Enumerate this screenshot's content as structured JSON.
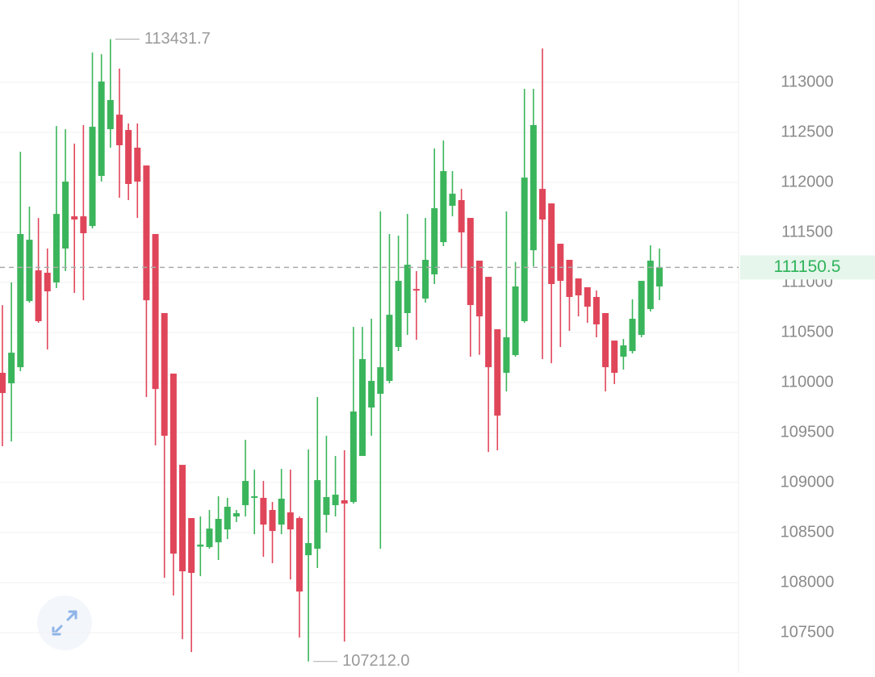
{
  "chart_data": {
    "type": "candlestick",
    "up_color": "#3bb55b",
    "down_color": "#e0465a",
    "open": [
      110097,
      109992,
      110153,
      110814,
      111121,
      111097,
      111000,
      111339,
      111661,
      111661,
      111564,
      112065,
      112532,
      112677,
      112524,
      112347,
      112169,
      111484,
      110694,
      110089,
      109177,
      108645,
      108360,
      108355,
      108403,
      108532,
      108661,
      108774,
      108847,
      108847,
      108726,
      108580,
      108702,
      108645,
      108274,
      108339,
      108677,
      108774,
      108823,
      108806,
      109266,
      109750,
      109887,
      110016,
      110355,
      110694,
      110935,
      110839,
      111081,
      111403,
      111766,
      111823,
      111645,
      111218,
      111056,
      110532,
      110097,
      110274,
      110613,
      111322,
      111935,
      111790,
      111387,
      111226,
      111040,
      110952,
      110855,
      110694,
      110419,
      110258,
      110314,
      110476,
      110734,
      110960
    ],
    "high": [
      110774,
      111000,
      112306,
      111758,
      111645,
      111339,
      112564,
      112532,
      112387,
      112573,
      113298,
      113282,
      113431.7,
      113137,
      112589,
      112589,
      112169,
      111484,
      110694,
      110089,
      109177,
      108645,
      108661,
      108726,
      108863,
      108847,
      108726,
      109427,
      109129,
      109016,
      108806,
      109137,
      109129,
      108661,
      109331,
      109855,
      109468,
      109266,
      109323,
      110556,
      110556,
      110637,
      111710,
      111484,
      111468,
      111685,
      111113,
      111645,
      112339,
      112419,
      112113,
      111935,
      111645,
      111218,
      111056,
      110532,
      111710,
      111205,
      112935,
      112935,
      113339,
      111790,
      111387,
      111226,
      111040,
      110952,
      110919,
      110694,
      110419,
      110436,
      110831,
      111016,
      111371,
      111339
    ],
    "low": [
      109363,
      109411,
      110113,
      110798,
      110597,
      110330,
      110944,
      111113,
      110895,
      110822,
      111540,
      112008,
      112347,
      111847,
      111823,
      111645,
      109855,
      109371,
      108048,
      107871,
      107435,
      107306,
      108064,
      108339,
      108226,
      108435,
      108605,
      108661,
      108484,
      108258,
      108194,
      108484,
      108032,
      107451,
      107212,
      108145,
      108500,
      108661,
      107411,
      108790,
      109266,
      109468,
      108339,
      109992,
      110315,
      110476,
      110427,
      110798,
      110984,
      111363,
      111661,
      111145,
      110258,
      110277,
      109306,
      109322,
      109911,
      110258,
      110597,
      111161,
      110234,
      110193,
      110355,
      110516,
      110661,
      110597,
      110452,
      109911,
      109984,
      110129,
      110290,
      110452,
      110710,
      110823
    ],
    "close": [
      109895,
      110298,
      111484,
      111427,
      110613,
      110911,
      111685,
      112008,
      111629,
      111492,
      112556,
      113008,
      112823,
      112371,
      111984,
      112008,
      110822,
      109935,
      109468,
      108290,
      108113,
      108097,
      108380,
      108540,
      108637,
      108758,
      108694,
      109016,
      108863,
      108580,
      108516,
      108839,
      108532,
      107911,
      108395,
      109024,
      108855,
      108879,
      108790,
      109710,
      110234,
      110016,
      110153,
      110677,
      111016,
      111177,
      110919,
      111226,
      111742,
      112113,
      111887,
      111500,
      110774,
      110661,
      110153,
      109669,
      110452,
      110960,
      112048,
      112573,
      111629,
      110984,
      111016,
      110855,
      110871,
      110758,
      110581,
      110153,
      110097,
      110371,
      110637,
      111016,
      111218,
      111150.5
    ],
    "ylim": [
      107097,
      113823
    ],
    "yticks": [
      107500,
      108000,
      108500,
      109000,
      109500,
      110000,
      110500,
      111000,
      111500,
      112000,
      112500,
      113000
    ],
    "grid": true,
    "max_label": 113431.7,
    "min_label": {
      "value": 107212,
      "label": "107212.0"
    },
    "last_price": 111150.5
  }
}
